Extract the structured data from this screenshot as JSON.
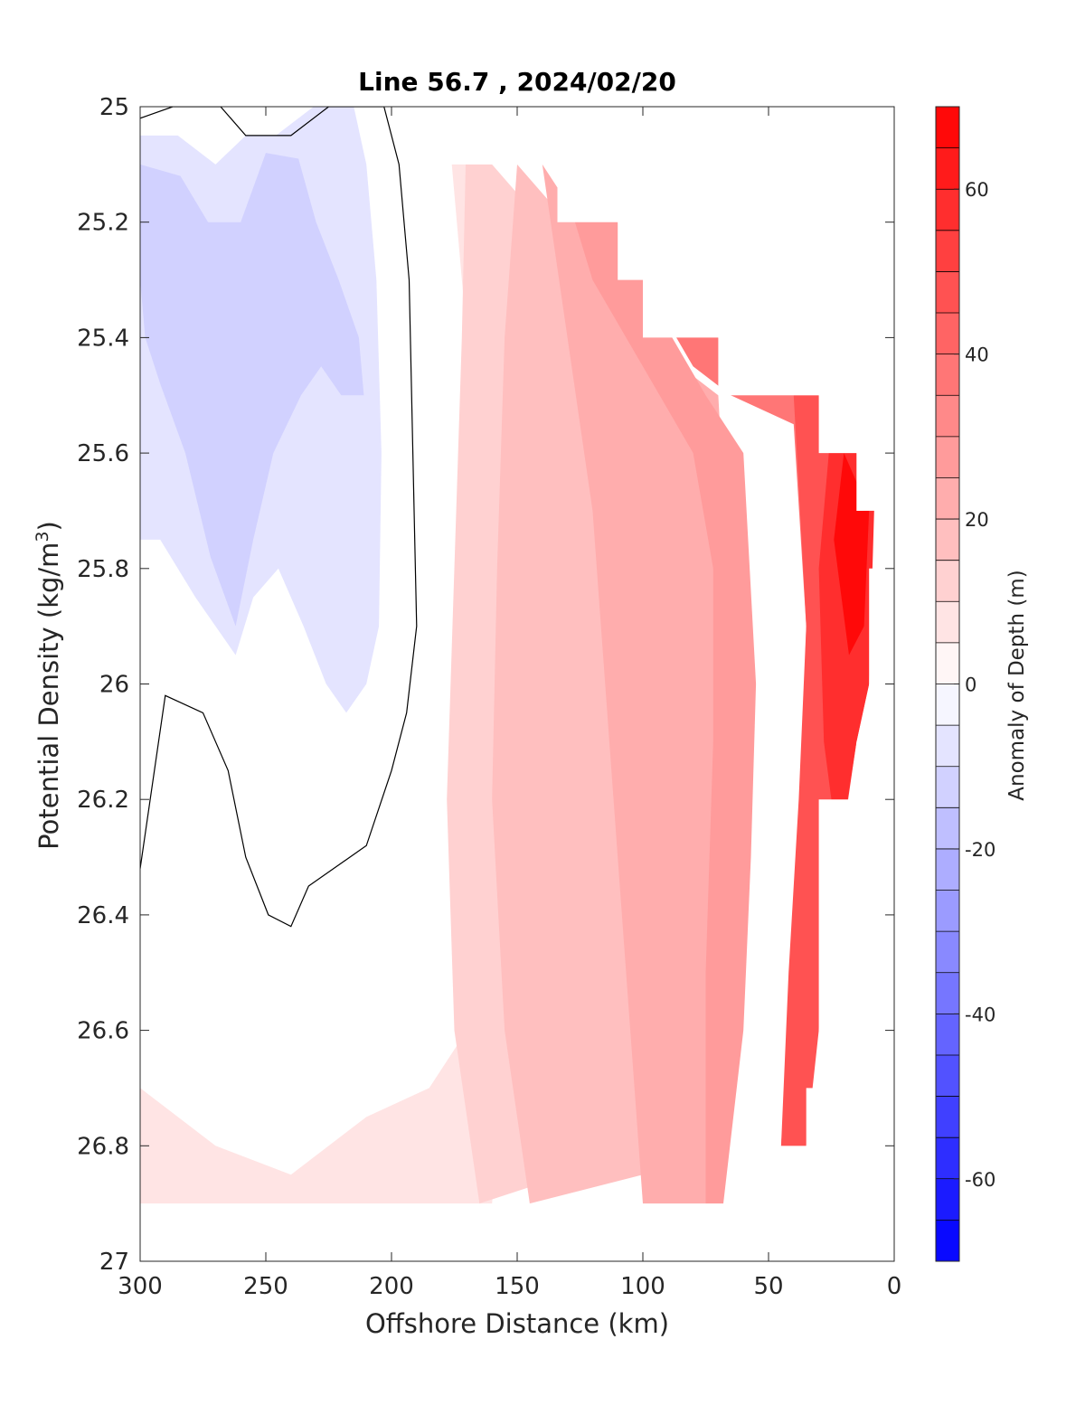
{
  "chart_data": {
    "type": "heatmap",
    "title": "Line 56.7 , 2024/02/20",
    "xlabel": "Offshore Distance (km)",
    "ylabel_main": "Potential Density (kg/m",
    "ylabel_sup": "3",
    "ylabel_close": ")",
    "colorbar_label": "Anomaly of Depth (m)",
    "xlim": [
      300,
      0
    ],
    "ylim": [
      25,
      27
    ],
    "x_ticks": [
      300,
      250,
      200,
      150,
      100,
      50,
      0
    ],
    "y_ticks": [
      25,
      25.2,
      25.4,
      25.6,
      25.8,
      26,
      26.2,
      26.4,
      26.6,
      26.8,
      27
    ],
    "x_tick_labels": [
      "300",
      "250",
      "200",
      "150",
      "100",
      "50",
      "0"
    ],
    "y_tick_labels": [
      "25",
      "25.2",
      "25.4",
      "25.6",
      "25.8",
      "26",
      "26.2",
      "26.4",
      "26.6",
      "26.8",
      "27"
    ],
    "clim": [
      -70,
      70
    ],
    "colorbar_ticks": [
      60,
      40,
      20,
      0,
      -20,
      -40,
      -60
    ],
    "colorbar_tick_labels": [
      "60",
      "40",
      "20",
      "0",
      "-20",
      "-40",
      "-60"
    ],
    "contour_step": 5,
    "colormap": "blue-white-red",
    "colors": {
      "negative": "#0000ff",
      "zero": "#ffffff",
      "positive": "#ff0000"
    },
    "contour_line": {
      "level": 0,
      "color": "#000000"
    },
    "data_coverage": {
      "density": [
        25.0,
        25.1,
        25.2,
        25.3,
        25.4,
        25.5,
        25.6,
        25.7,
        25.8,
        25.9,
        26.0,
        26.1,
        26.2,
        26.3,
        26.4,
        26.5,
        26.6,
        26.7,
        26.8,
        26.9
      ],
      "nearshore_limit_km": [
        180,
        134,
        110,
        100,
        70,
        30,
        15,
        5,
        10,
        10,
        10,
        15,
        30,
        30,
        30,
        30,
        30,
        35,
        35,
        65
      ]
    },
    "regions": [
      {
        "anomaly": 0,
        "polygon": [
          [
            300,
            25.0
          ],
          [
            180,
            25.0
          ],
          [
            180,
            26.9
          ],
          [
            300,
            26.9
          ]
        ]
      },
      {
        "anomaly": -2,
        "polygon": [
          [
            300,
            25.02
          ],
          [
            287,
            25.0
          ],
          [
            268,
            25.0
          ],
          [
            258,
            25.05
          ],
          [
            240,
            25.05
          ],
          [
            225,
            25.0
          ],
          [
            203,
            25.0
          ],
          [
            197,
            25.1
          ],
          [
            193,
            25.3
          ],
          [
            191,
            25.7
          ],
          [
            190,
            25.9
          ],
          [
            194,
            26.05
          ],
          [
            200,
            26.15
          ],
          [
            210,
            26.28
          ],
          [
            233,
            26.35
          ],
          [
            240,
            26.42
          ],
          [
            249,
            26.4
          ],
          [
            258,
            26.3
          ],
          [
            265,
            26.15
          ],
          [
            275,
            26.05
          ],
          [
            290,
            26.02
          ],
          [
            300,
            26.32
          ]
        ]
      },
      {
        "anomaly": -7,
        "polygon": [
          [
            300,
            25.05
          ],
          [
            285,
            25.05
          ],
          [
            270,
            25.1
          ],
          [
            258,
            25.05
          ],
          [
            246,
            25.05
          ],
          [
            231,
            25.0
          ],
          [
            215,
            25.0
          ],
          [
            210,
            25.1
          ],
          [
            206,
            25.3
          ],
          [
            204,
            25.6
          ],
          [
            205,
            25.9
          ],
          [
            210,
            26.0
          ],
          [
            218,
            26.05
          ],
          [
            226,
            26.0
          ],
          [
            235,
            25.9
          ],
          [
            245,
            25.8
          ],
          [
            255,
            25.85
          ],
          [
            262,
            25.95
          ],
          [
            270,
            25.9
          ],
          [
            278,
            25.85
          ],
          [
            292,
            25.75
          ],
          [
            300,
            25.75
          ]
        ]
      },
      {
        "anomaly": -12,
        "polygon": [
          [
            300,
            25.1
          ],
          [
            284,
            25.12
          ],
          [
            273,
            25.2
          ],
          [
            260,
            25.2
          ],
          [
            250,
            25.08
          ],
          [
            237,
            25.09
          ],
          [
            230,
            25.2
          ],
          [
            221,
            25.3
          ],
          [
            213,
            25.4
          ],
          [
            211,
            25.5
          ],
          [
            220,
            25.5
          ],
          [
            228,
            25.45
          ],
          [
            236,
            25.5
          ],
          [
            247,
            25.6
          ],
          [
            255,
            25.75
          ],
          [
            262,
            25.9
          ],
          [
            272,
            25.78
          ],
          [
            282,
            25.6
          ],
          [
            292,
            25.48
          ],
          [
            298,
            25.4
          ],
          [
            300,
            25.3
          ]
        ]
      },
      {
        "anomaly": 3,
        "polygon": [
          [
            190,
            25.0
          ],
          [
            172,
            25.0
          ],
          [
            170,
            25.2
          ],
          [
            168,
            25.5
          ],
          [
            168,
            25.8
          ],
          [
            170,
            26.1
          ],
          [
            175,
            26.3
          ],
          [
            185,
            26.5
          ],
          [
            200,
            26.55
          ],
          [
            215,
            26.6
          ],
          [
            235,
            26.65
          ],
          [
            260,
            26.7
          ],
          [
            280,
            26.62
          ],
          [
            290,
            26.25
          ],
          [
            300,
            26.45
          ],
          [
            300,
            26.9
          ],
          [
            185,
            26.9
          ],
          [
            180,
            26.7
          ],
          [
            182,
            26.2
          ],
          [
            186,
            25.7
          ],
          [
            189,
            25.3
          ]
        ]
      },
      {
        "anomaly": 8,
        "polygon": [
          [
            178,
            25.0
          ],
          [
            165,
            25.0
          ],
          [
            160,
            25.2
          ],
          [
            152,
            25.5
          ],
          [
            150,
            25.7
          ],
          [
            152,
            26.0
          ],
          [
            160,
            26.2
          ],
          [
            165,
            26.4
          ],
          [
            170,
            26.6
          ],
          [
            185,
            26.7
          ],
          [
            210,
            26.75
          ],
          [
            240,
            26.85
          ],
          [
            270,
            26.8
          ],
          [
            300,
            26.7
          ],
          [
            300,
            26.9
          ],
          [
            160,
            26.9
          ],
          [
            155,
            26.6
          ],
          [
            158,
            26.2
          ],
          [
            165,
            25.8
          ],
          [
            170,
            25.4
          ],
          [
            176,
            25.1
          ]
        ]
      },
      {
        "anomaly": 13,
        "polygon": [
          [
            170,
            25.0
          ],
          [
            160,
            25.1
          ],
          [
            140,
            25.2
          ],
          [
            120,
            25.35
          ],
          [
            100,
            25.5
          ],
          [
            85,
            25.7
          ],
          [
            80,
            26.0
          ],
          [
            85,
            26.3
          ],
          [
            95,
            26.5
          ],
          [
            110,
            26.7
          ],
          [
            130,
            26.85
          ],
          [
            165,
            26.9
          ],
          [
            175,
            26.6
          ],
          [
            178,
            26.2
          ],
          [
            175,
            25.8
          ],
          [
            172,
            25.4
          ]
        ]
      },
      {
        "anomaly": 18,
        "polygon": [
          [
            150,
            25.1
          ],
          [
            130,
            25.2
          ],
          [
            115,
            25.3
          ],
          [
            95,
            25.45
          ],
          [
            80,
            25.6
          ],
          [
            75,
            25.9
          ],
          [
            78,
            26.2
          ],
          [
            82,
            26.5
          ],
          [
            90,
            26.7
          ],
          [
            100,
            26.85
          ],
          [
            145,
            26.9
          ],
          [
            155,
            26.6
          ],
          [
            160,
            26.2
          ],
          [
            158,
            25.8
          ],
          [
            155,
            25.4
          ]
        ]
      },
      {
        "anomaly": 23,
        "polygon": [
          [
            140,
            25.1
          ],
          [
            125,
            25.2
          ],
          [
            105,
            25.3
          ],
          [
            85,
            25.45
          ],
          [
            70,
            25.5
          ],
          [
            65,
            25.9
          ],
          [
            67,
            26.3
          ],
          [
            70,
            26.6
          ],
          [
            75,
            26.9
          ],
          [
            100,
            26.9
          ],
          [
            105,
            26.6
          ],
          [
            110,
            26.3
          ],
          [
            115,
            26.0
          ],
          [
            120,
            25.7
          ],
          [
            130,
            25.4
          ]
        ]
      },
      {
        "anomaly": 28,
        "polygon": [
          [
            134,
            25.1
          ],
          [
            110,
            25.2
          ],
          [
            95,
            25.35
          ],
          [
            75,
            25.5
          ],
          [
            60,
            25.6
          ],
          [
            55,
            26.0
          ],
          [
            57,
            26.3
          ],
          [
            60,
            26.6
          ],
          [
            68,
            26.9
          ],
          [
            75,
            26.9
          ],
          [
            75,
            26.5
          ],
          [
            72,
            26.1
          ],
          [
            72,
            25.8
          ],
          [
            80,
            25.6
          ],
          [
            100,
            25.45
          ],
          [
            120,
            25.3
          ]
        ]
      },
      {
        "anomaly": 35,
        "polygon": [
          [
            134,
            25.1
          ],
          [
            110,
            25.2
          ],
          [
            100,
            25.3
          ],
          [
            80,
            25.45
          ],
          [
            65,
            25.5
          ],
          [
            40,
            25.55
          ],
          [
            35,
            25.9
          ],
          [
            38,
            26.3
          ],
          [
            42,
            26.6
          ],
          [
            45,
            26.8
          ],
          [
            35,
            26.8
          ],
          [
            30,
            26.5
          ],
          [
            30,
            26.0
          ],
          [
            32,
            25.6
          ],
          [
            30,
            25.5
          ],
          [
            70,
            25.4
          ],
          [
            100,
            25.3
          ],
          [
            110,
            25.2
          ]
        ]
      },
      {
        "anomaly": 45,
        "polygon": [
          [
            40,
            25.5
          ],
          [
            30,
            25.5
          ],
          [
            15,
            25.6
          ],
          [
            10,
            25.7
          ],
          [
            10,
            26.0
          ],
          [
            15,
            26.1
          ],
          [
            25,
            26.4
          ],
          [
            30,
            26.6
          ],
          [
            35,
            26.8
          ],
          [
            45,
            26.8
          ],
          [
            42,
            26.5
          ],
          [
            38,
            26.2
          ],
          [
            35,
            25.9
          ]
        ]
      },
      {
        "anomaly": 55,
        "polygon": [
          [
            25,
            25.55
          ],
          [
            15,
            25.6
          ],
          [
            8,
            25.7
          ],
          [
            10,
            26.0
          ],
          [
            15,
            26.1
          ],
          [
            22,
            26.3
          ],
          [
            28,
            26.1
          ],
          [
            30,
            25.8
          ]
        ]
      },
      {
        "anomaly": 65,
        "polygon": [
          [
            20,
            25.6
          ],
          [
            10,
            25.7
          ],
          [
            12,
            25.9
          ],
          [
            18,
            25.95
          ],
          [
            24,
            25.75
          ]
        ]
      }
    ]
  }
}
